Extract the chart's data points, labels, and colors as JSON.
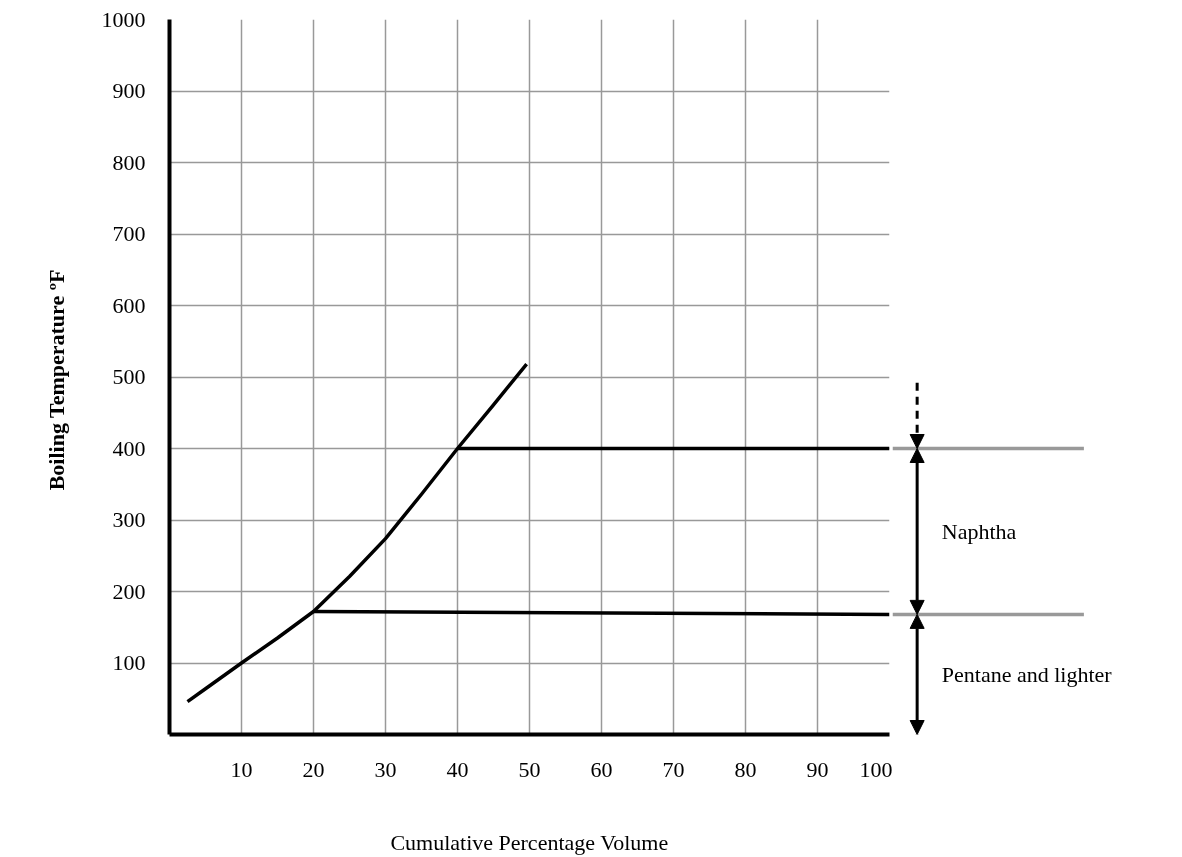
{
  "chart_data": {
    "type": "line",
    "xlabel": "Cumulative Percentage Volume",
    "ylabel": "Boiling Temperature  ºF",
    "xlim": [
      0,
      100
    ],
    "ylim": [
      0,
      1000
    ],
    "xticks": [
      10,
      20,
      30,
      40,
      50,
      60,
      70,
      80,
      90,
      100
    ],
    "yticks": [
      {
        "value": 0,
        "label": null
      },
      100,
      200,
      300,
      400,
      500,
      600,
      700,
      800,
      900,
      1000
    ],
    "grid": true,
    "marker": "none",
    "line_style": "solid",
    "series": [
      {
        "color": "#000000",
        "x": [
          2.5,
          5,
          10,
          15,
          20,
          25,
          30,
          35,
          40,
          45,
          49.6
        ],
        "values": [
          46,
          64,
          100,
          135,
          172,
          221,
          274,
          336,
          400,
          461,
          518
        ]
      },
      {
        "color": "#000000",
        "x": [
          20,
          100
        ],
        "values": [
          172,
          168
        ]
      },
      {
        "color": "#000000",
        "x": [
          40,
          100
        ],
        "values": [
          400,
          400
        ]
      }
    ],
    "annotations": [
      "Naphtha",
      "Pentane and lighter"
    ]
  }
}
